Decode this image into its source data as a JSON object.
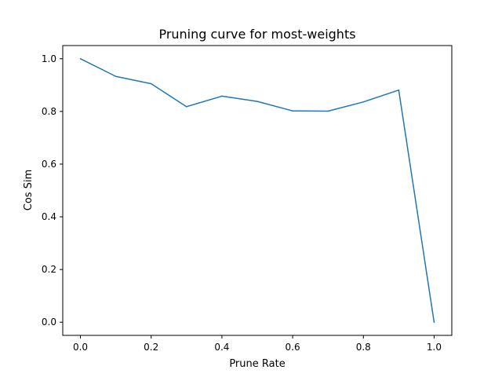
{
  "chart_data": {
    "type": "line",
    "title": "Pruning curve for most-weights",
    "xlabel": "Prune Rate",
    "ylabel": "Cos Sim",
    "xlim": [
      -0.05,
      1.05
    ],
    "ylim": [
      -0.05,
      1.05
    ],
    "xticks": [
      0.0,
      0.2,
      0.4,
      0.6,
      0.8,
      1.0
    ],
    "xtick_labels": [
      "0.0",
      "0.2",
      "0.4",
      "0.6",
      "0.8",
      "1.0"
    ],
    "yticks": [
      0.0,
      0.2,
      0.4,
      0.6,
      0.8,
      1.0
    ],
    "ytick_labels": [
      "0.0",
      "0.2",
      "0.4",
      "0.6",
      "0.8",
      "1.0"
    ],
    "grid": false,
    "series": [
      {
        "color": "#1f77b4",
        "x": [
          0.0,
          0.1,
          0.2,
          0.3,
          0.4,
          0.5,
          0.6,
          0.7,
          0.8,
          0.9,
          1.0
        ],
        "y": [
          1.0,
          0.933,
          0.905,
          0.818,
          0.858,
          0.838,
          0.802,
          0.801,
          0.836,
          0.881,
          0.0
        ]
      }
    ]
  }
}
